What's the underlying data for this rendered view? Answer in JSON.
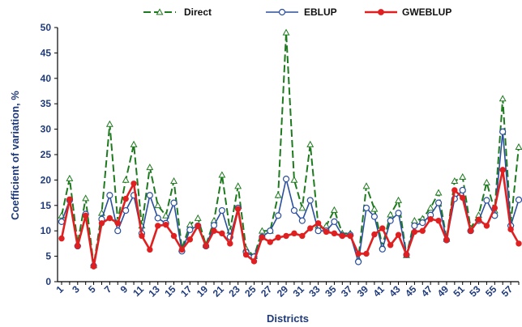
{
  "chart_data": {
    "type": "line",
    "title": "",
    "xlabel": "Districts",
    "ylabel": "Coefficient of variation, %",
    "ylim": [
      0,
      50
    ],
    "yticks": [
      0,
      5,
      10,
      15,
      20,
      25,
      30,
      35,
      40,
      45,
      50
    ],
    "x": [
      1,
      2,
      3,
      4,
      5,
      6,
      7,
      8,
      9,
      10,
      11,
      12,
      13,
      14,
      15,
      16,
      17,
      18,
      19,
      20,
      21,
      22,
      23,
      24,
      25,
      26,
      27,
      28,
      29,
      30,
      31,
      32,
      33,
      34,
      35,
      36,
      37,
      38,
      39,
      40,
      41,
      42,
      43,
      44,
      45,
      46,
      47,
      48,
      49,
      50,
      51,
      52,
      53,
      54,
      55,
      56,
      57,
      58
    ],
    "xtick_labels": [
      "1",
      "3",
      "5",
      "7",
      "9",
      "11",
      "13",
      "15",
      "17",
      "19",
      "21",
      "23",
      "25",
      "27",
      "29",
      "31",
      "33",
      "35",
      "37",
      "39",
      "41",
      "43",
      "45",
      "47",
      "49",
      "51",
      "53",
      "55",
      "57"
    ],
    "grid": false,
    "legend_position": "top",
    "series": [
      {
        "name": "Direct",
        "color": "#1e7a1e",
        "marker": "triangle-open",
        "line_style": "dashed",
        "values": [
          13,
          20.3,
          7.5,
          16.4,
          3.2,
          13.5,
          31,
          12,
          20,
          27,
          11,
          22.5,
          15,
          13,
          19.8,
          6.5,
          11.2,
          12.5,
          7.2,
          12,
          21,
          10,
          18.8,
          6.5,
          5,
          10,
          10,
          17,
          49,
          20,
          14.5,
          27,
          11,
          11,
          14.1,
          9.5,
          9.5,
          4.5,
          18.8,
          14.3,
          7,
          13.2,
          16,
          5.2,
          12,
          12.4,
          14.5,
          17.5,
          8.4,
          19.8,
          20.6,
          10.5,
          13.1,
          19.5,
          14,
          36,
          11.5,
          26.5
        ]
      },
      {
        "name": "EBLUP",
        "color": "#2b4f9e",
        "marker": "circle-open",
        "line_style": "solid",
        "values": [
          11.8,
          16,
          7,
          13.3,
          3.1,
          12.3,
          17,
          10,
          14,
          17,
          9.5,
          17,
          12.5,
          11.5,
          15.5,
          6,
          10.2,
          11,
          7,
          11.1,
          14,
          8.8,
          14.5,
          5.8,
          4.9,
          8.8,
          10,
          13,
          20.2,
          14,
          12,
          16,
          10,
          10,
          11.8,
          9.1,
          9.2,
          3.9,
          14.5,
          12.8,
          6.4,
          12,
          13.5,
          5.3,
          11,
          11.6,
          13.1,
          15.5,
          8.2,
          16.3,
          18,
          10,
          12,
          16,
          13,
          29.5,
          11,
          16.1
        ]
      },
      {
        "name": "GWEBLUP",
        "color": "#e02020",
        "marker": "circle-filled",
        "line_style": "solid",
        "values": [
          8.5,
          16.2,
          7,
          13,
          3,
          11.5,
          12.5,
          11.5,
          16.3,
          19.3,
          9,
          6.3,
          11,
          11.2,
          9,
          6.3,
          8.3,
          11,
          7,
          10,
          9.5,
          7.5,
          14.3,
          5.3,
          4,
          8.7,
          7.8,
          8.7,
          9,
          9.5,
          9,
          10.5,
          11.5,
          9.8,
          9.5,
          9,
          9,
          5.5,
          5.5,
          9.3,
          10.5,
          7.2,
          9.2,
          5.3,
          9.8,
          10,
          12.3,
          12,
          8.2,
          18,
          16.5,
          10,
          12.2,
          11,
          14.5,
          22,
          10.3,
          7.5
        ]
      }
    ]
  }
}
